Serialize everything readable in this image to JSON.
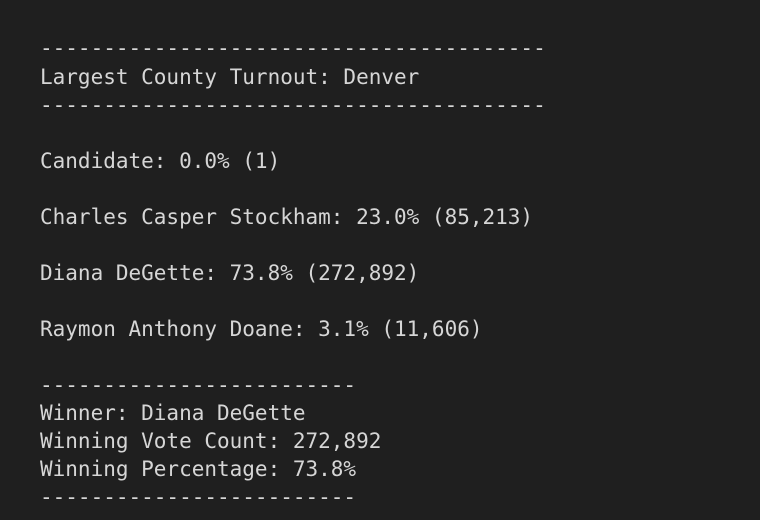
{
  "output": {
    "separator_long": "----------------------------------------",
    "separator_short": "-------------------------",
    "largest_county": "Largest County Turnout: Denver",
    "candidates": [
      "Candidate: 0.0% (1)",
      "Charles Casper Stockham: 23.0% (85,213)",
      "Diana DeGette: 73.8% (272,892)",
      "Raymon Anthony Doane: 3.1% (11,606)"
    ],
    "winner": "Winner: Diana DeGette",
    "winning_vote_count": "Winning Vote Count: 272,892",
    "winning_percentage": "Winning Percentage: 73.8%"
  }
}
